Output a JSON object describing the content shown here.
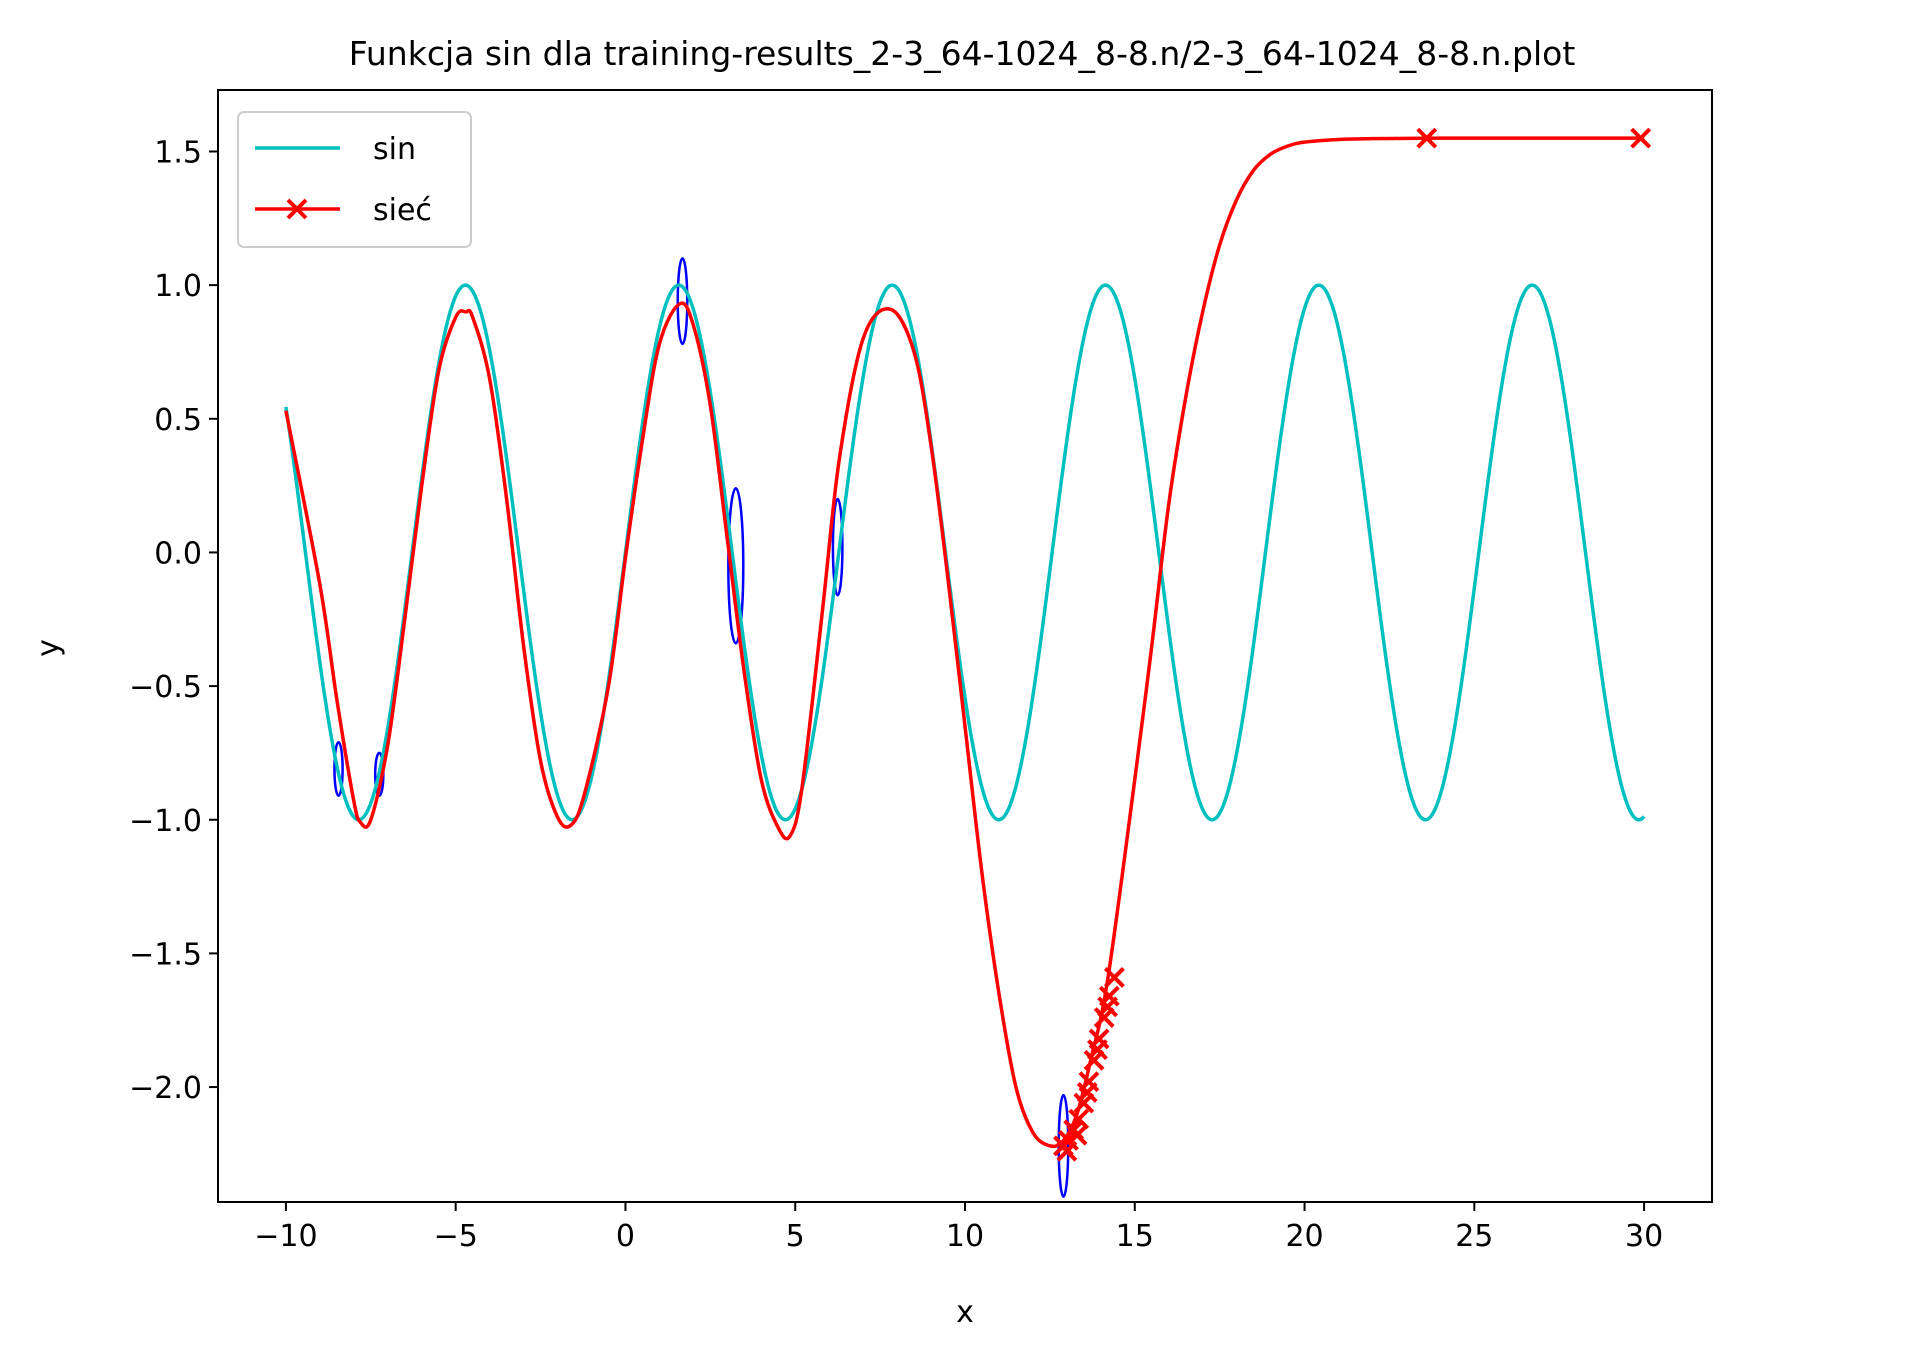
{
  "chart_data": {
    "type": "line",
    "title": "Funkcja sin dla training-results_2-3_64-1024_8-8.n/2-3_64-1024_8-8.n.plot",
    "xlabel": "x",
    "ylabel": "y",
    "xlim": [
      -12,
      32
    ],
    "ylim": [
      -2.43,
      1.73
    ],
    "xticks": [
      -10,
      -5,
      0,
      5,
      10,
      15,
      20,
      25,
      30
    ],
    "xtick_labels": [
      "−10",
      "−5",
      "0",
      "5",
      "10",
      "15",
      "20",
      "25",
      "30"
    ],
    "yticks": [
      1.5,
      1.0,
      0.5,
      0.0,
      -0.5,
      -1.0,
      -1.5,
      -2.0
    ],
    "ytick_labels": [
      "1.5",
      "1.0",
      "0.5",
      "0.0",
      "−0.5",
      "−1.0",
      "−1.5",
      "−2.0"
    ],
    "grid": false,
    "legend": "top-left",
    "series": [
      {
        "name": "sin",
        "color": "#00bfbf",
        "marker": "none",
        "function": "sin(x)",
        "x_range": [
          -10,
          30
        ]
      },
      {
        "name": "sieć",
        "color": "#ff0000",
        "marker": "x",
        "x": [
          -10,
          -9,
          -8.5,
          -8,
          -7.8,
          -7.5,
          -7,
          -6.5,
          -6,
          -5.5,
          -5,
          -4.7,
          -4.5,
          -4,
          -3.5,
          -3,
          -2.5,
          -2,
          -1.6,
          -1.2,
          -0.5,
          0,
          0.5,
          1,
          1.6,
          2,
          2.5,
          3,
          3.5,
          4,
          4.5,
          4.85,
          5.2,
          5.8,
          6.3,
          7,
          7.8,
          8.5,
          9,
          9.5,
          10,
          10.5,
          11,
          11.5,
          12,
          12.5,
          12.9,
          13.3,
          13.7,
          14.2,
          15,
          15.5,
          16,
          16.5,
          17,
          17.5,
          18,
          18.5,
          19,
          19.5,
          20,
          21,
          22,
          23,
          24,
          25,
          26,
          27,
          28,
          29,
          30
        ],
        "y": [
          0.53,
          -0.12,
          -0.55,
          -0.93,
          -1.01,
          -1.0,
          -0.72,
          -0.25,
          0.25,
          0.68,
          0.88,
          0.9,
          0.88,
          0.65,
          0.2,
          -0.35,
          -0.78,
          -0.99,
          -1.02,
          -0.9,
          -0.5,
          -0.02,
          0.42,
          0.78,
          0.93,
          0.85,
          0.55,
          0.05,
          -0.45,
          -0.85,
          -1.03,
          -1.06,
          -0.88,
          -0.22,
          0.35,
          0.8,
          0.91,
          0.75,
          0.4,
          -0.1,
          -0.65,
          -1.2,
          -1.65,
          -2.0,
          -2.17,
          -2.22,
          -2.2,
          -2.1,
          -1.9,
          -1.6,
          -0.85,
          -0.35,
          0.18,
          0.58,
          0.9,
          1.15,
          1.32,
          1.43,
          1.49,
          1.52,
          1.535,
          1.545,
          1.548,
          1.549,
          1.55,
          1.55,
          1.55,
          1.55,
          1.55,
          1.55,
          1.55
        ],
        "marker_points": [
          [
            12.9,
            -2.22
          ],
          [
            13.05,
            -2.2
          ],
          [
            13.2,
            -2.16
          ],
          [
            13.35,
            -2.12
          ],
          [
            13.5,
            -2.06
          ],
          [
            13.65,
            -1.98
          ],
          [
            13.8,
            -1.9
          ],
          [
            13.95,
            -1.82
          ],
          [
            14.1,
            -1.74
          ],
          [
            14.25,
            -1.66
          ],
          [
            14.4,
            -1.59
          ],
          [
            13.0,
            -2.24
          ],
          [
            13.3,
            -2.18
          ],
          [
            13.6,
            -2.02
          ],
          [
            13.9,
            -1.86
          ],
          [
            14.2,
            -1.7
          ],
          [
            23.6,
            1.55
          ],
          [
            29.9,
            1.55
          ]
        ]
      }
    ],
    "annotations": [
      {
        "shape": "ellipse",
        "color": "#0000ff",
        "cx": -8.45,
        "cy": -0.81,
        "rx": 0.12,
        "ry": 0.1
      },
      {
        "shape": "ellipse",
        "color": "#0000ff",
        "cx": -7.25,
        "cy": -0.83,
        "rx": 0.12,
        "ry": 0.08
      },
      {
        "shape": "ellipse",
        "color": "#0000ff",
        "cx": 1.68,
        "cy": 0.94,
        "rx": 0.14,
        "ry": 0.16
      },
      {
        "shape": "ellipse",
        "color": "#0000ff",
        "cx": 3.25,
        "cy": -0.05,
        "rx": 0.22,
        "ry": 0.29
      },
      {
        "shape": "ellipse",
        "color": "#0000ff",
        "cx": 6.25,
        "cy": 0.02,
        "rx": 0.14,
        "ry": 0.18
      },
      {
        "shape": "ellipse",
        "color": "#0000ff",
        "cx": 12.9,
        "cy": -2.22,
        "rx": 0.14,
        "ry": 0.19
      }
    ]
  }
}
